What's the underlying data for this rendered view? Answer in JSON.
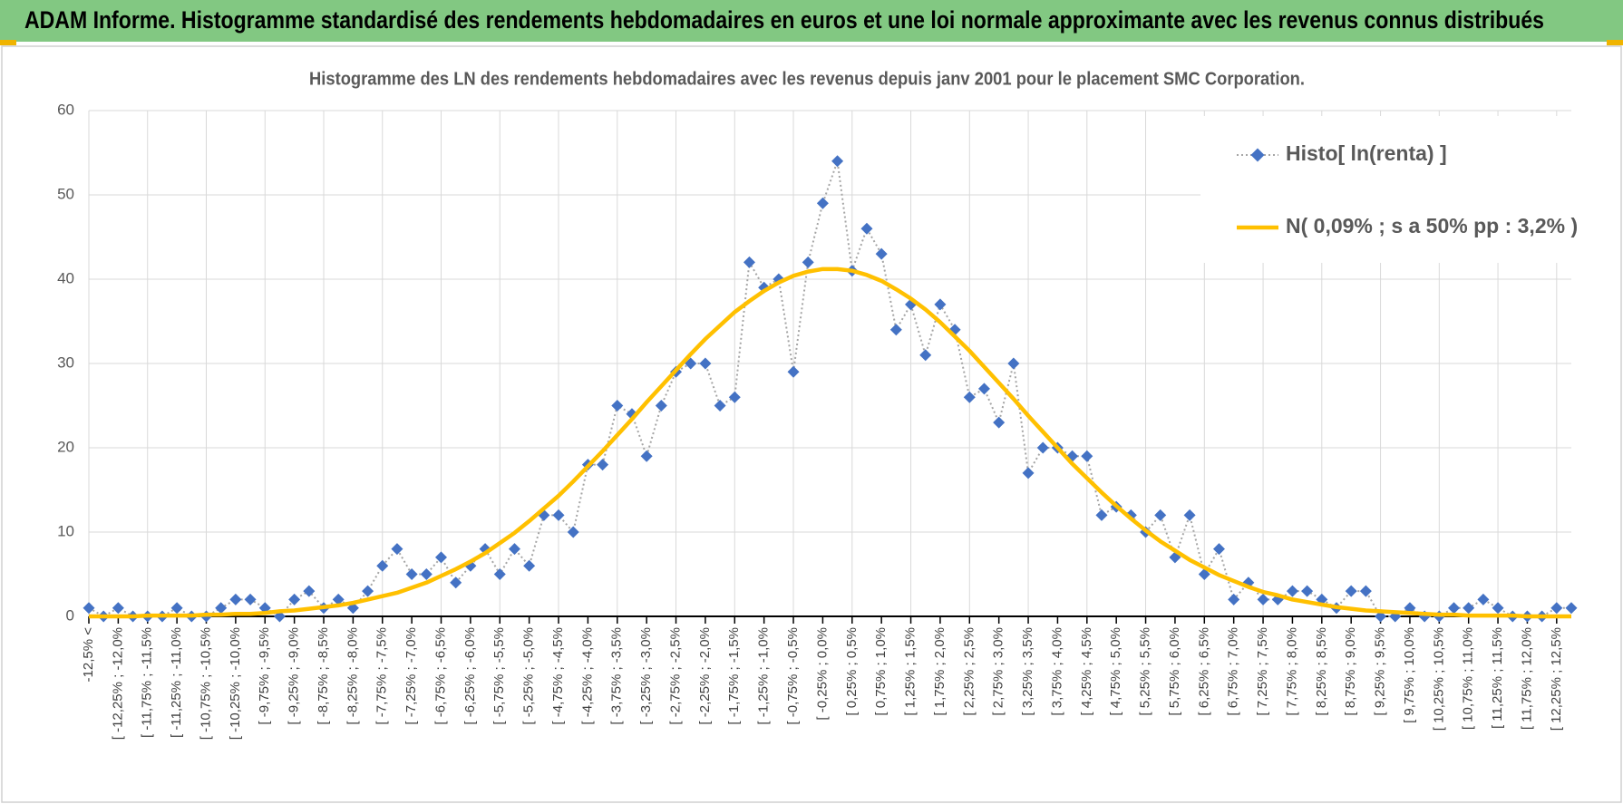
{
  "header": {
    "title": "ADAM Informe. Histogramme standardisé des rendements hebdomadaires en euros et une loi normale approximante avec les revenus connus distribués"
  },
  "chart_data": {
    "type": "line",
    "title": "Histogramme des LN des rendements hebdomadaires avec les revenus depuis janv 2001 pour le placement SMC Corporation.",
    "categories": [
      "-12,5% <",
      null,
      "[ -12,25% ; -12,0%",
      null,
      "[ -11,75% ; -11,5%",
      null,
      "[ -11,25% ; -11,0%",
      null,
      "[ -10,75% ; -10,5%",
      null,
      "[ -10,25% ; -10,0%",
      null,
      "[ -9,75% ; -9,5%",
      null,
      "[ -9,25% ; -9,0%",
      null,
      "[ -8,75% ; -8,5%",
      null,
      "[ -8,25% ; -8,0%",
      null,
      "[ -7,75% ; -7,5%",
      null,
      "[ -7,25% ; -7,0%",
      null,
      "[ -6,75% ; -6,5%",
      null,
      "[ -6,25% ; -6,0%",
      null,
      "[ -5,75% ; -5,5%",
      null,
      "[ -5,25% ; -5,0%",
      null,
      "[ -4,75% ; -4,5%",
      null,
      "[ -4,25% ; -4,0%",
      null,
      "[ -3,75% ; -3,5%",
      null,
      "[ -3,25% ; -3,0%",
      null,
      "[ -2,75% ; -2,5%",
      null,
      "[ -2,25% ; -2,0%",
      null,
      "[ -1,75% ; -1,5%",
      null,
      "[ -1,25% ; -1,0%",
      null,
      "[ -0,75% ; -0,5%",
      null,
      "[ -0,25% ; 0,0%",
      null,
      "[ 0,25% ; 0,5%",
      null,
      "[ 0,75% ; 1,0%",
      null,
      "[ 1,25% ; 1,5%",
      null,
      "[ 1,75% ; 2,0%",
      null,
      "[ 2,25% ; 2,5%",
      null,
      "[ 2,75% ; 3,0%",
      null,
      "[ 3,25% ; 3,5%",
      null,
      "[ 3,75% ; 4,0%",
      null,
      "[ 4,25% ; 4,5%",
      null,
      "[ 4,75% ; 5,0%",
      null,
      "[ 5,25% ; 5,5%",
      null,
      "[ 5,75% ; 6,0%",
      null,
      "[ 6,25% ; 6,5%",
      null,
      "[ 6,75% ; 7,0%",
      null,
      "[ 7,25% ; 7,5%",
      null,
      "[ 7,75% ; 8,0%",
      null,
      "[ 8,25% ; 8,5%",
      null,
      "[ 8,75% ; 9,0%",
      null,
      "[ 9,25% ; 9,5%",
      null,
      "[ 9,75% ; 10,0%",
      null,
      "[ 10,25% ; 10,5%",
      null,
      "[ 10,75% ; 11,0%",
      null,
      "[ 11,25% ; 11,5%",
      null,
      "[ 11,75% ; 12,0%",
      null,
      "[ 12,25% ; 12,5%",
      null
    ],
    "series": [
      {
        "name": "Histo[ ln(renta) ]",
        "color": "#4472c4",
        "line_color": "#a5a5a5",
        "line_style": "dotted",
        "marker": "diamond",
        "values": [
          1,
          0,
          1,
          0,
          0,
          0,
          1,
          0,
          0,
          1,
          2,
          2,
          1,
          0,
          2,
          3,
          1,
          2,
          1,
          3,
          6,
          8,
          5,
          5,
          7,
          4,
          6,
          8,
          5,
          8,
          6,
          12,
          12,
          10,
          18,
          18,
          25,
          24,
          19,
          25,
          29,
          30,
          30,
          25,
          26,
          42,
          39,
          40,
          29,
          42,
          49,
          54,
          41,
          46,
          43,
          34,
          37,
          31,
          37,
          34,
          26,
          27,
          23,
          30,
          17,
          20,
          20,
          19,
          19,
          12,
          13,
          12,
          10,
          12,
          7,
          12,
          5,
          8,
          2,
          4,
          2,
          2,
          3,
          3,
          2,
          1,
          3,
          3,
          0,
          0,
          1,
          0,
          0,
          1,
          1,
          2,
          1,
          0,
          0,
          0,
          1,
          1
        ]
      },
      {
        "name": "N( 0,09% ; s a 50% pp : 3,2% )",
        "color": "#ffc000",
        "line_style": "solid",
        "values": [
          0.0,
          0.0,
          0.0,
          0.0,
          0.1,
          0.1,
          0.1,
          0.1,
          0.2,
          0.2,
          0.3,
          0.3,
          0.4,
          0.6,
          0.7,
          0.9,
          1.1,
          1.3,
          1.6,
          2.0,
          2.4,
          2.8,
          3.4,
          4.0,
          4.8,
          5.6,
          6.5,
          7.5,
          8.7,
          9.9,
          11.3,
          12.8,
          14.3,
          16.0,
          17.8,
          19.6,
          21.5,
          23.4,
          25.4,
          27.3,
          29.2,
          31.1,
          32.9,
          34.5,
          36.1,
          37.4,
          38.6,
          39.6,
          40.4,
          40.9,
          41.2,
          41.2,
          41.0,
          40.5,
          39.8,
          38.8,
          37.7,
          36.4,
          34.9,
          33.2,
          31.5,
          29.6,
          27.7,
          25.8,
          23.8,
          21.9,
          20.0,
          18.1,
          16.4,
          14.7,
          13.1,
          11.6,
          10.2,
          8.9,
          7.8,
          6.7,
          5.8,
          4.9,
          4.2,
          3.5,
          2.9,
          2.5,
          2.0,
          1.7,
          1.4,
          1.1,
          0.9,
          0.7,
          0.6,
          0.5,
          0.4,
          0.3,
          0.2,
          0.2,
          0.1,
          0.1,
          0.1,
          0.1,
          0.0,
          0.0,
          0.0,
          0.0
        ]
      }
    ],
    "ylim": [
      0,
      60
    ],
    "yticks": [
      0,
      10,
      20,
      30,
      40,
      50,
      60
    ],
    "grid": true,
    "legend": "top-right"
  }
}
